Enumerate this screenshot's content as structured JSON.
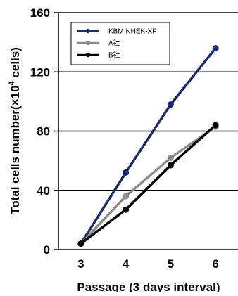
{
  "chart_data": {
    "type": "line",
    "title": "",
    "xlabel": "Passage (3 days interval)",
    "ylabel": "Total cells number(×10",
    "ylabel_superscript": "4",
    "ylabel_suffix": " cells)",
    "x": [
      3,
      4,
      5,
      6
    ],
    "ylim": [
      0,
      160
    ],
    "yticks": [
      0,
      40,
      80,
      120,
      160
    ],
    "grid": "horizontal",
    "legend_position": "top-left",
    "series": [
      {
        "name": "KBM NHEK-XF",
        "color": "#1a2a6c",
        "values": [
          4,
          52,
          98,
          136
        ]
      },
      {
        "name": "A社",
        "color": "#8c8c8c",
        "values": [
          4,
          36,
          62,
          83
        ]
      },
      {
        "name": "B社",
        "color": "#000000",
        "values": [
          4,
          27,
          57,
          84
        ]
      }
    ]
  }
}
